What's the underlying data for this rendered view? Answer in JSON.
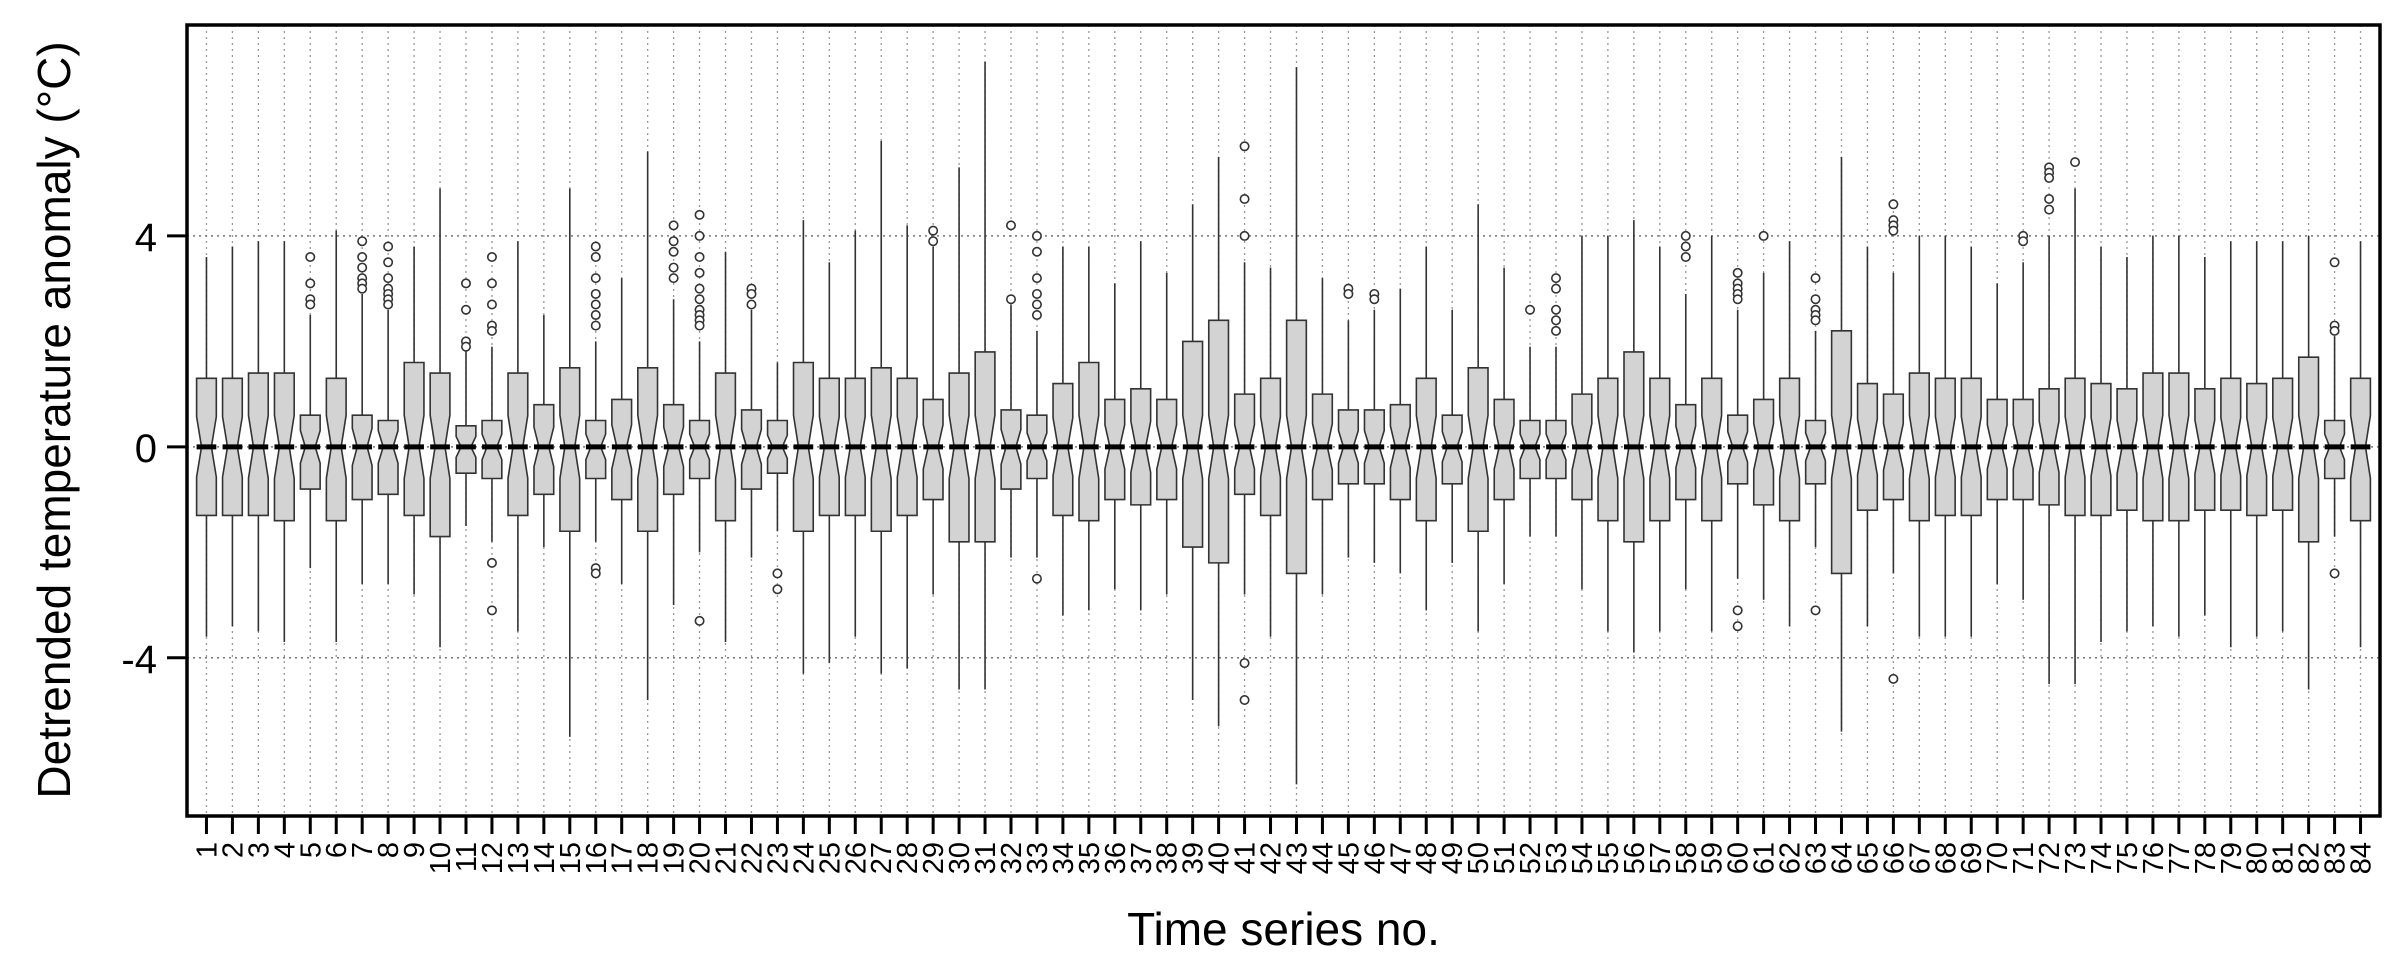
{
  "chart_data": {
    "type": "boxplot",
    "xlabel": "Time series no.",
    "ylabel": "Detrended temperature anomaly (°C)",
    "ylim": [
      -7,
      8
    ],
    "yticks": [
      -4,
      0,
      4
    ],
    "grid": true,
    "categories": [
      "1",
      "2",
      "3",
      "4",
      "5",
      "6",
      "7",
      "8",
      "9",
      "10",
      "11",
      "12",
      "13",
      "14",
      "15",
      "16",
      "17",
      "18",
      "19",
      "20",
      "21",
      "22",
      "23",
      "24",
      "25",
      "26",
      "27",
      "28",
      "29",
      "30",
      "31",
      "32",
      "33",
      "34",
      "35",
      "36",
      "37",
      "38",
      "39",
      "40",
      "41",
      "42",
      "43",
      "44",
      "45",
      "46",
      "47",
      "48",
      "49",
      "50",
      "51",
      "52",
      "53",
      "54",
      "55",
      "56",
      "57",
      "58",
      "59",
      "60",
      "61",
      "62",
      "63",
      "64",
      "65",
      "66",
      "67",
      "68",
      "69",
      "70",
      "71",
      "72",
      "73",
      "74",
      "75",
      "76",
      "77",
      "78",
      "79",
      "80",
      "81",
      "82",
      "83",
      "84"
    ],
    "box_style": {
      "fill": "#d3d3d3",
      "stroke": "#333333",
      "median": "#000000"
    },
    "boxes": [
      {
        "lo": -3.6,
        "q1": -1.3,
        "med": 0,
        "q3": 1.3,
        "hi": 3.6,
        "out": []
      },
      {
        "lo": -3.4,
        "q1": -1.3,
        "med": 0,
        "q3": 1.3,
        "hi": 3.8,
        "out": []
      },
      {
        "lo": -3.5,
        "q1": -1.3,
        "med": 0,
        "q3": 1.4,
        "hi": 3.9,
        "out": []
      },
      {
        "lo": -3.7,
        "q1": -1.4,
        "med": 0,
        "q3": 1.4,
        "hi": 3.9,
        "out": []
      },
      {
        "lo": -2.3,
        "q1": -0.8,
        "med": 0,
        "q3": 0.6,
        "hi": 2.5,
        "out": [
          3.6,
          3.1,
          2.8,
          2.7
        ]
      },
      {
        "lo": -3.7,
        "q1": -1.4,
        "med": 0,
        "q3": 1.3,
        "hi": 4.1,
        "out": []
      },
      {
        "lo": -2.6,
        "q1": -1,
        "med": 0,
        "q3": 0.6,
        "hi": 2.9,
        "out": [
          3.9,
          3.6,
          3.4,
          3.2,
          3.1,
          3
        ]
      },
      {
        "lo": -2.6,
        "q1": -0.9,
        "med": 0,
        "q3": 0.5,
        "hi": 2.6,
        "out": [
          3.8,
          3.5,
          3.2,
          3,
          2.9,
          2.8,
          2.7
        ]
      },
      {
        "lo": -2.8,
        "q1": -1.3,
        "med": 0,
        "q3": 1.6,
        "hi": 3.8,
        "out": []
      },
      {
        "lo": -3.8,
        "q1": -1.7,
        "med": 0,
        "q3": 1.4,
        "hi": 4.9,
        "out": []
      },
      {
        "lo": -1.5,
        "q1": -0.5,
        "med": 0,
        "q3": 0.4,
        "hi": 1.9,
        "out": [
          3.1,
          2.6,
          2,
          1.9
        ]
      },
      {
        "lo": -1.8,
        "q1": -0.6,
        "med": 0,
        "q3": 0.5,
        "hi": 1.9,
        "out": [
          3.6,
          3.1,
          2.7,
          2.3,
          2.2,
          -2.2,
          -3.1
        ]
      },
      {
        "lo": -3.5,
        "q1": -1.3,
        "med": 0,
        "q3": 1.4,
        "hi": 3.9,
        "out": []
      },
      {
        "lo": -1.9,
        "q1": -0.9,
        "med": 0,
        "q3": 0.8,
        "hi": 2.5,
        "out": []
      },
      {
        "lo": -5.5,
        "q1": -1.6,
        "med": 0,
        "q3": 1.5,
        "hi": 4.9,
        "out": []
      },
      {
        "lo": -1.8,
        "q1": -0.6,
        "med": 0,
        "q3": 0.5,
        "hi": 2,
        "out": [
          3.8,
          3.6,
          3.2,
          2.9,
          2.7,
          2.5,
          2.3,
          -2.3,
          -2.4
        ]
      },
      {
        "lo": -2.6,
        "q1": -1,
        "med": 0,
        "q3": 0.9,
        "hi": 3.2,
        "out": []
      },
      {
        "lo": -4.8,
        "q1": -1.6,
        "med": 0,
        "q3": 1.5,
        "hi": 5.6,
        "out": []
      },
      {
        "lo": -3,
        "q1": -0.9,
        "med": 0,
        "q3": 0.8,
        "hi": 2.8,
        "out": [
          4.2,
          3.9,
          3.7,
          3.4,
          3.2
        ]
      },
      {
        "lo": -2,
        "q1": -0.6,
        "med": 0,
        "q3": 0.5,
        "hi": 2,
        "out": [
          4.4,
          4,
          3.6,
          3.3,
          3,
          2.8,
          2.6,
          2.5,
          2.4,
          2.3,
          -3.3
        ]
      },
      {
        "lo": -3.7,
        "q1": -1.4,
        "med": 0,
        "q3": 1.4,
        "hi": 3.7,
        "out": []
      },
      {
        "lo": -2.1,
        "q1": -0.8,
        "med": 0,
        "q3": 0.7,
        "hi": 2.6,
        "out": [
          3,
          2.9,
          2.7
        ]
      },
      {
        "lo": -1.6,
        "q1": -0.5,
        "med": 0,
        "q3": 0.5,
        "hi": 1.6,
        "out": [
          -2.4,
          -2.7
        ]
      },
      {
        "lo": -4.3,
        "q1": -1.6,
        "med": 0,
        "q3": 1.6,
        "hi": 4.3,
        "out": []
      },
      {
        "lo": -4.1,
        "q1": -1.3,
        "med": 0,
        "q3": 1.3,
        "hi": 3.5,
        "out": []
      },
      {
        "lo": -3.6,
        "q1": -1.3,
        "med": 0,
        "q3": 1.3,
        "hi": 4.1,
        "out": []
      },
      {
        "lo": -4.3,
        "q1": -1.6,
        "med": 0,
        "q3": 1.5,
        "hi": 5.8,
        "out": []
      },
      {
        "lo": -4.2,
        "q1": -1.3,
        "med": 0,
        "q3": 1.3,
        "hi": 4.2,
        "out": []
      },
      {
        "lo": -2.8,
        "q1": -1,
        "med": 0,
        "q3": 0.9,
        "hi": 3.8,
        "out": [
          4.1,
          3.9
        ]
      },
      {
        "lo": -4.6,
        "q1": -1.8,
        "med": 0,
        "q3": 1.4,
        "hi": 5.3,
        "out": []
      },
      {
        "lo": -4.6,
        "q1": -1.8,
        "med": 0,
        "q3": 1.8,
        "hi": 7.3,
        "out": []
      },
      {
        "lo": -2.1,
        "q1": -0.8,
        "med": 0,
        "q3": 0.7,
        "hi": 2.7,
        "out": [
          4.2,
          2.8
        ]
      },
      {
        "lo": -2.1,
        "q1": -0.6,
        "med": 0,
        "q3": 0.6,
        "hi": 2.2,
        "out": [
          4,
          3.7,
          3.2,
          2.9,
          2.7,
          2.5,
          -2.5
        ]
      },
      {
        "lo": -3.2,
        "q1": -1.3,
        "med": 0,
        "q3": 1.2,
        "hi": 3.8,
        "out": []
      },
      {
        "lo": -3.1,
        "q1": -1.4,
        "med": 0,
        "q3": 1.6,
        "hi": 3.8,
        "out": []
      },
      {
        "lo": -2.7,
        "q1": -1,
        "med": 0,
        "q3": 0.9,
        "hi": 3.1,
        "out": []
      },
      {
        "lo": -3.1,
        "q1": -1.1,
        "med": 0,
        "q3": 1.1,
        "hi": 3.9,
        "out": []
      },
      {
        "lo": -2.8,
        "q1": -1,
        "med": 0,
        "q3": 0.9,
        "hi": 3.3,
        "out": []
      },
      {
        "lo": -4.8,
        "q1": -1.9,
        "med": 0,
        "q3": 2,
        "hi": 4.6,
        "out": []
      },
      {
        "lo": -5.3,
        "q1": -2.2,
        "med": 0,
        "q3": 2.4,
        "hi": 5.5,
        "out": []
      },
      {
        "lo": -2.8,
        "q1": -0.9,
        "med": 0,
        "q3": 1,
        "hi": 3.5,
        "out": [
          5.7,
          4.7,
          4,
          -4.1,
          -4.8
        ]
      },
      {
        "lo": -3.6,
        "q1": -1.3,
        "med": 0,
        "q3": 1.3,
        "hi": 3.4,
        "out": []
      },
      {
        "lo": -6.4,
        "q1": -2.4,
        "med": 0,
        "q3": 2.4,
        "hi": 7.2,
        "out": []
      },
      {
        "lo": -2.8,
        "q1": -1,
        "med": 0,
        "q3": 1,
        "hi": 3.2,
        "out": []
      },
      {
        "lo": -2.1,
        "q1": -0.7,
        "med": 0,
        "q3": 0.7,
        "hi": 2.4,
        "out": [
          3,
          2.9
        ]
      },
      {
        "lo": -2.2,
        "q1": -0.7,
        "med": 0,
        "q3": 0.7,
        "hi": 2.6,
        "out": [
          2.9,
          2.8
        ]
      },
      {
        "lo": -2.4,
        "q1": -1,
        "med": 0,
        "q3": 0.8,
        "hi": 3,
        "out": []
      },
      {
        "lo": -3.1,
        "q1": -1.4,
        "med": 0,
        "q3": 1.3,
        "hi": 3.8,
        "out": []
      },
      {
        "lo": -2.2,
        "q1": -0.7,
        "med": 0,
        "q3": 0.6,
        "hi": 2.6,
        "out": []
      },
      {
        "lo": -3.5,
        "q1": -1.6,
        "med": 0,
        "q3": 1.5,
        "hi": 4.6,
        "out": []
      },
      {
        "lo": -2.6,
        "q1": -1,
        "med": 0,
        "q3": 0.9,
        "hi": 3.4,
        "out": []
      },
      {
        "lo": -1.7,
        "q1": -0.6,
        "med": 0,
        "q3": 0.5,
        "hi": 1.9,
        "out": [
          2.6
        ]
      },
      {
        "lo": -1.7,
        "q1": -0.6,
        "med": 0,
        "q3": 0.5,
        "hi": 1.9,
        "out": [
          3.2,
          3,
          2.6,
          2.4,
          2.2
        ]
      },
      {
        "lo": -2.7,
        "q1": -1,
        "med": 0,
        "q3": 1,
        "hi": 4,
        "out": []
      },
      {
        "lo": -3.5,
        "q1": -1.4,
        "med": 0,
        "q3": 1.3,
        "hi": 4,
        "out": []
      },
      {
        "lo": -3.9,
        "q1": -1.8,
        "med": 0,
        "q3": 1.8,
        "hi": 4.3,
        "out": []
      },
      {
        "lo": -3.5,
        "q1": -1.4,
        "med": 0,
        "q3": 1.3,
        "hi": 3.8,
        "out": []
      },
      {
        "lo": -2.7,
        "q1": -1,
        "med": 0,
        "q3": 0.8,
        "hi": 2.9,
        "out": [
          4,
          3.8,
          3.6
        ]
      },
      {
        "lo": -3.5,
        "q1": -1.4,
        "med": 0,
        "q3": 1.3,
        "hi": 4,
        "out": []
      },
      {
        "lo": -2.5,
        "q1": -0.7,
        "med": 0,
        "q3": 0.6,
        "hi": 2.6,
        "out": [
          3.3,
          3.1,
          3,
          2.9,
          2.8,
          -3.1,
          -3.4
        ]
      },
      {
        "lo": -2.9,
        "q1": -1.1,
        "med": 0,
        "q3": 0.9,
        "hi": 3.3,
        "out": [
          4
        ]
      },
      {
        "lo": -3.4,
        "q1": -1.4,
        "med": 0,
        "q3": 1.3,
        "hi": 3.9,
        "out": []
      },
      {
        "lo": -1.9,
        "q1": -0.7,
        "med": 0,
        "q3": 0.5,
        "hi": 2.2,
        "out": [
          3.2,
          2.8,
          2.6,
          2.5,
          2.4,
          -3.1
        ]
      },
      {
        "lo": -5.4,
        "q1": -2.4,
        "med": 0,
        "q3": 2.2,
        "hi": 5.5,
        "out": []
      },
      {
        "lo": -3.4,
        "q1": -1.2,
        "med": 0,
        "q3": 1.2,
        "hi": 3.8,
        "out": []
      },
      {
        "lo": -2.4,
        "q1": -1,
        "med": 0,
        "q3": 1,
        "hi": 3.3,
        "out": [
          4.6,
          4.3,
          4.2,
          4.1,
          -4.4
        ]
      },
      {
        "lo": -3.6,
        "q1": -1.4,
        "med": 0,
        "q3": 1.4,
        "hi": 4,
        "out": []
      },
      {
        "lo": -3.6,
        "q1": -1.3,
        "med": 0,
        "q3": 1.3,
        "hi": 4,
        "out": []
      },
      {
        "lo": -3.6,
        "q1": -1.3,
        "med": 0,
        "q3": 1.3,
        "hi": 3.8,
        "out": []
      },
      {
        "lo": -2.6,
        "q1": -1,
        "med": 0,
        "q3": 0.9,
        "hi": 3.1,
        "out": []
      },
      {
        "lo": -2.9,
        "q1": -1,
        "med": 0,
        "q3": 0.9,
        "hi": 3.5,
        "out": [
          4,
          3.9
        ]
      },
      {
        "lo": -4.5,
        "q1": -1.1,
        "med": 0,
        "q3": 1.1,
        "hi": 4,
        "out": [
          5.3,
          5.2,
          5.1,
          4.7,
          4.5
        ]
      },
      {
        "lo": -4.5,
        "q1": -1.3,
        "med": 0,
        "q3": 1.3,
        "hi": 4.9,
        "out": [
          5.4
        ]
      },
      {
        "lo": -3.7,
        "q1": -1.3,
        "med": 0,
        "q3": 1.2,
        "hi": 3.8,
        "out": []
      },
      {
        "lo": -3.5,
        "q1": -1.2,
        "med": 0,
        "q3": 1.1,
        "hi": 3.6,
        "out": []
      },
      {
        "lo": -3.4,
        "q1": -1.4,
        "med": 0,
        "q3": 1.4,
        "hi": 4,
        "out": []
      },
      {
        "lo": -3.6,
        "q1": -1.4,
        "med": 0,
        "q3": 1.4,
        "hi": 4,
        "out": []
      },
      {
        "lo": -3.2,
        "q1": -1.2,
        "med": 0,
        "q3": 1.1,
        "hi": 3.6,
        "out": []
      },
      {
        "lo": -3.8,
        "q1": -1.2,
        "med": 0,
        "q3": 1.3,
        "hi": 3.9,
        "out": []
      },
      {
        "lo": -3.6,
        "q1": -1.3,
        "med": 0,
        "q3": 1.2,
        "hi": 3.9,
        "out": []
      },
      {
        "lo": -3.5,
        "q1": -1.2,
        "med": 0,
        "q3": 1.3,
        "hi": 3.9,
        "out": []
      },
      {
        "lo": -4.6,
        "q1": -1.8,
        "med": 0,
        "q3": 1.7,
        "hi": 4,
        "out": []
      },
      {
        "lo": -1.7,
        "q1": -0.6,
        "med": 0,
        "q3": 0.5,
        "hi": 2.1,
        "out": [
          3.5,
          2.3,
          2.2,
          -2.4
        ]
      },
      {
        "lo": -3.8,
        "q1": -1.4,
        "med": 0,
        "q3": 1.3,
        "hi": 3.9,
        "out": []
      }
    ]
  }
}
